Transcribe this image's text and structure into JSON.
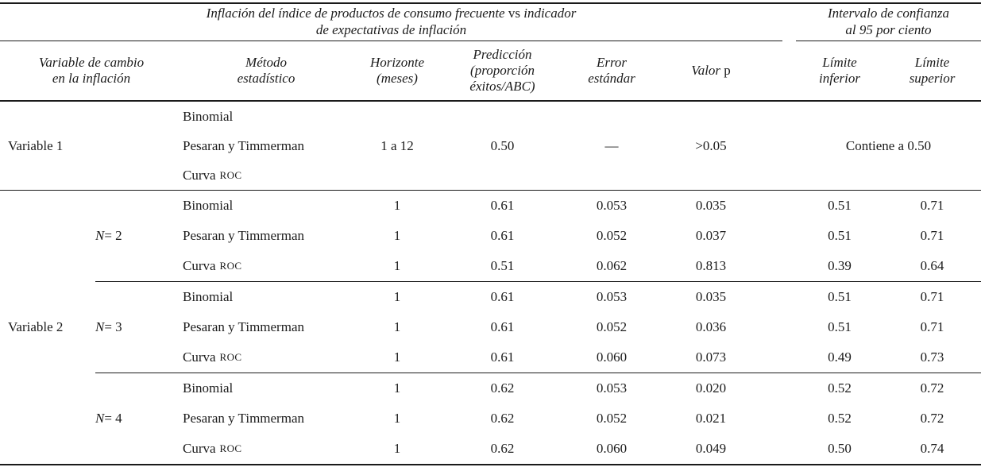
{
  "title_block": {
    "main_pre": "Inflación del índice de productos de consumo frecuente",
    "main_vs": "vs",
    "main_post": "indicador",
    "main_line2": "de expectativas de inflación",
    "ci_line1": "Intervalo de confianza",
    "ci_line2": "al 95 por ciento"
  },
  "headers": {
    "variable": [
      "Variable de cambio",
      "en la inflación"
    ],
    "metodo": [
      "Método",
      "estadístico"
    ],
    "horizonte": [
      "Horizonte",
      "(meses)"
    ],
    "prediccion": [
      "Predicción",
      "(proporción",
      "éxitos/ABC)"
    ],
    "error": [
      "Error",
      "estándar"
    ],
    "valor_p_italic": "Valor",
    "valor_p_roman": "p",
    "lim_inf": [
      "Límite",
      "inferior"
    ],
    "lim_sup": [
      "Límite",
      "superior"
    ]
  },
  "body": {
    "variable1": {
      "label": "Variable 1",
      "rows": [
        {
          "metodo": "Binomial"
        },
        {
          "metodo": "Pesaran y Timmerman",
          "horizonte": "1 a 12",
          "prediccion": "0.50",
          "error": "—",
          "valor_p": ">0.05",
          "intervalo": "Contiene a 0.50"
        },
        {
          "metodo": "Curva",
          "metodo_sc": "ROC"
        }
      ]
    },
    "variable2": {
      "label": "Variable 2",
      "groups": [
        {
          "n_italic": "N",
          "n_rest": " = 2",
          "rows": [
            {
              "metodo": "Binomial",
              "horizonte": "1",
              "prediccion": "0.61",
              "error": "0.053",
              "valor_p": "0.035",
              "lim_inf": "0.51",
              "lim_sup": "0.71"
            },
            {
              "metodo": "Pesaran y Timmerman",
              "horizonte": "1",
              "prediccion": "0.61",
              "error": "0.052",
              "valor_p": "0.037",
              "lim_inf": "0.51",
              "lim_sup": "0.71"
            },
            {
              "metodo": "Curva",
              "metodo_sc": "ROC",
              "horizonte": "1",
              "prediccion": "0.51",
              "error": "0.062",
              "valor_p": "0.813",
              "lim_inf": "0.39",
              "lim_sup": "0.64"
            }
          ]
        },
        {
          "n_italic": "N",
          "n_rest": " = 3",
          "rows": [
            {
              "metodo": "Binomial",
              "horizonte": "1",
              "prediccion": "0.61",
              "error": "0.053",
              "valor_p": "0.035",
              "lim_inf": "0.51",
              "lim_sup": "0.71"
            },
            {
              "metodo": "Pesaran y Timmerman",
              "horizonte": "1",
              "prediccion": "0.61",
              "error": "0.052",
              "valor_p": "0.036",
              "lim_inf": "0.51",
              "lim_sup": "0.71"
            },
            {
              "metodo": "Curva",
              "metodo_sc": "ROC",
              "horizonte": "1",
              "prediccion": "0.61",
              "error": "0.060",
              "valor_p": "0.073",
              "lim_inf": "0.49",
              "lim_sup": "0.73"
            }
          ]
        },
        {
          "n_italic": "N",
          "n_rest": " = 4",
          "rows": [
            {
              "metodo": "Binomial",
              "horizonte": "1",
              "prediccion": "0.62",
              "error": "0.053",
              "valor_p": "0.020",
              "lim_inf": "0.52",
              "lim_sup": "0.72"
            },
            {
              "metodo": "Pesaran y Timmerman",
              "horizonte": "1",
              "prediccion": "0.62",
              "error": "0.052",
              "valor_p": "0.021",
              "lim_inf": "0.52",
              "lim_sup": "0.72"
            },
            {
              "metodo": "Curva",
              "metodo_sc": "ROC",
              "horizonte": "1",
              "prediccion": "0.62",
              "error": "0.060",
              "valor_p": "0.049",
              "lim_inf": "0.50",
              "lim_sup": "0.74"
            }
          ]
        }
      ]
    }
  }
}
